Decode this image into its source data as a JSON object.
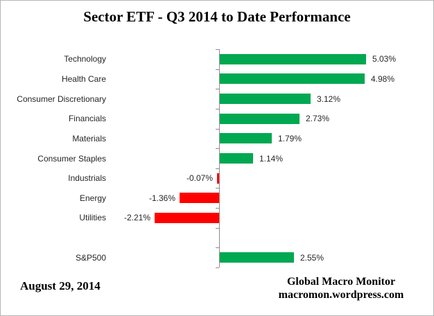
{
  "title": "Sector ETF - Q3 2014 to Date Performance",
  "footer": {
    "date": "August 29, 2014",
    "source_line1": "Global Macro Monitor",
    "source_line2": "macromon.wordpress.com"
  },
  "chart_data": {
    "type": "bar",
    "orientation": "horizontal",
    "title": "Sector ETF - Q3 2014 to Date Performance",
    "categories": [
      "Technology",
      "Health Care",
      "Consumer Discretionary",
      "Financials",
      "Materials",
      "Consumer Staples",
      "Industrials",
      "Energy",
      "Utilities",
      "",
      "S&P500"
    ],
    "values": [
      5.03,
      4.98,
      3.12,
      2.73,
      1.79,
      1.14,
      -0.07,
      -1.36,
      -2.21,
      null,
      2.55
    ],
    "data_labels": [
      "5.03%",
      "4.98%",
      "3.12%",
      "2.73%",
      "1.79%",
      "1.14%",
      "-0.07%",
      "-1.36%",
      "-2.21%",
      "",
      "2.55%"
    ],
    "positive_color": "#00A851",
    "negative_color": "#FF0000",
    "axis_color": "#8C8C8C",
    "grid": false,
    "legend": false,
    "value_axis": "hidden (zero baseline drawn as vertical line with one tick per category)"
  }
}
